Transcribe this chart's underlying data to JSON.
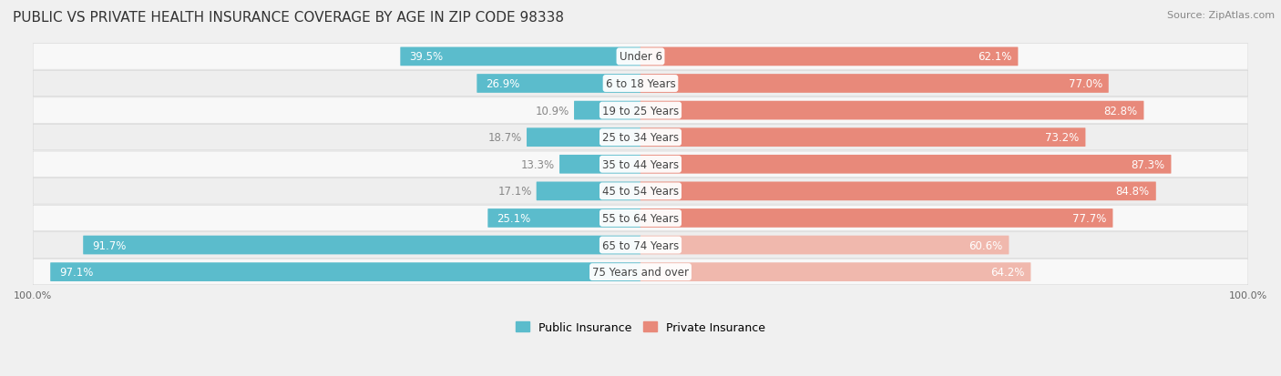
{
  "title": "PUBLIC VS PRIVATE HEALTH INSURANCE COVERAGE BY AGE IN ZIP CODE 98338",
  "source": "Source: ZipAtlas.com",
  "categories": [
    "Under 6",
    "6 to 18 Years",
    "19 to 25 Years",
    "25 to 34 Years",
    "35 to 44 Years",
    "45 to 54 Years",
    "55 to 64 Years",
    "65 to 74 Years",
    "75 Years and over"
  ],
  "public_values": [
    39.5,
    26.9,
    10.9,
    18.7,
    13.3,
    17.1,
    25.1,
    91.7,
    97.1
  ],
  "private_values": [
    62.1,
    77.0,
    82.8,
    73.2,
    87.3,
    84.8,
    77.7,
    60.6,
    64.2
  ],
  "public_color": "#5bbccc",
  "private_color_full": "#e8897a",
  "private_color_light": "#f0b8ad",
  "private_light_indices": [
    7,
    8
  ],
  "background_color": "#f0f0f0",
  "row_bg_even": "#f8f8f8",
  "row_bg_odd": "#eeeeee",
  "label_color_dark": "#888888",
  "label_color_white": "#ffffff",
  "title_fontsize": 11,
  "source_fontsize": 8,
  "bar_label_fontsize": 8.5,
  "category_label_fontsize": 8.5,
  "axis_label_fontsize": 8,
  "legend_fontsize": 9,
  "max_value": 100.0,
  "pub_threshold_inside": 20.0
}
